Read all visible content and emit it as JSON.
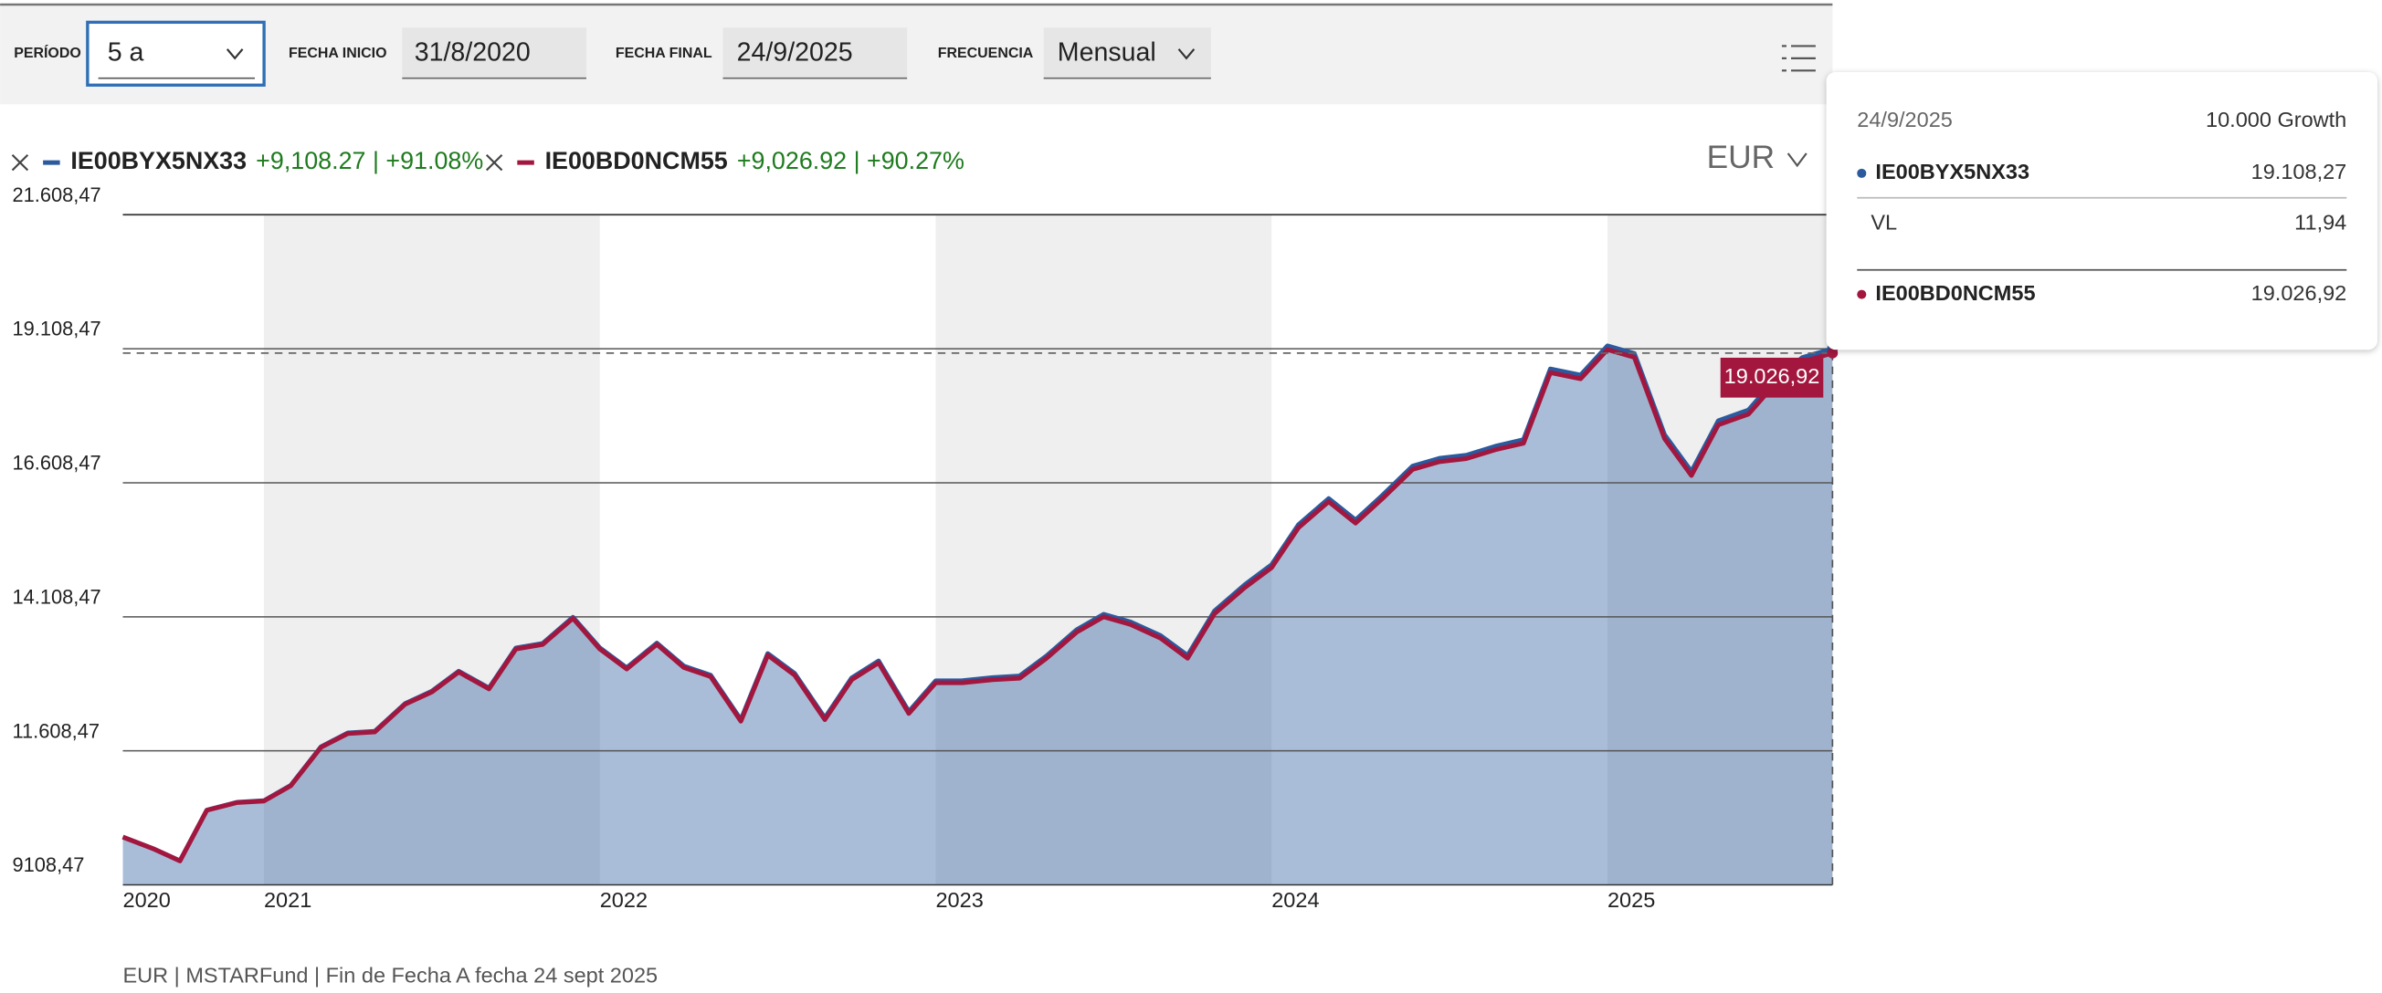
{
  "toolbar": {
    "period_label": "PERÍODO",
    "period": "5 a",
    "start_label": "FECHA INICIO",
    "start": "31/8/2020",
    "end_label": "FECHA FINAL",
    "end": "24/9/2025",
    "freq_label": "FRECUENCIA",
    "freq": "Mensual"
  },
  "chart_data": {
    "type": "line",
    "currency": "EUR",
    "footer": "EUR | MSTARFund | Fin de Fecha A fecha 24 sept 2025",
    "x": [
      2020.58,
      2020.67,
      2020.75,
      2020.83,
      2020.92,
      2021.0,
      2021.08,
      2021.17,
      2021.25,
      2021.33,
      2021.42,
      2021.5,
      2021.58,
      2021.67,
      2021.75,
      2021.83,
      2021.92,
      2022.0,
      2022.08,
      2022.17,
      2022.25,
      2022.33,
      2022.42,
      2022.5,
      2022.58,
      2022.67,
      2022.75,
      2022.83,
      2022.92,
      2023.0,
      2023.08,
      2023.17,
      2023.25,
      2023.33,
      2023.42,
      2023.5,
      2023.58,
      2023.67,
      2023.75,
      2023.83,
      2023.92,
      2024.0,
      2024.08,
      2024.17,
      2024.25,
      2024.33,
      2024.42,
      2024.5,
      2024.58,
      2024.67,
      2024.75,
      2024.83,
      2024.92,
      2025.0,
      2025.08,
      2025.17,
      2025.25,
      2025.33,
      2025.42,
      2025.5,
      2025.58,
      2025.67
    ],
    "xlim": [
      2020.58,
      2025.67
    ],
    "xticks": [
      {
        "value": 2020.58,
        "label": "2020"
      },
      2021,
      2022,
      2023,
      2024,
      2025
    ],
    "ylim": [
      9108.47,
      21608.47
    ],
    "yticks": [
      {
        "value": 9108.47,
        "label": "9108,47"
      },
      {
        "value": 11608.47,
        "label": "11.608,47"
      },
      {
        "value": 14108.47,
        "label": "14.108,47"
      },
      {
        "value": 16608.47,
        "label": "16.608,47"
      },
      {
        "value": 19108.47,
        "label": "19.108,47"
      },
      {
        "value": 21608.47,
        "label": "21.608,47"
      }
    ],
    "grid": true,
    "series": [
      {
        "name": "IE00BYX5NX33",
        "color": "#2b5a9e",
        "change": "+9,108.27 | +91.08%",
        "values": [
          10000,
          9785,
          9558,
          10504,
          10649,
          10679,
          10966,
          11684,
          11943,
          11973,
          12489,
          12721,
          13094,
          12780,
          13526,
          13613,
          14101,
          13530,
          13159,
          13618,
          13191,
          13020,
          12190,
          13424,
          13053,
          12223,
          12970,
          13286,
          12342,
          12916,
          12917,
          12976,
          13006,
          13380,
          13868,
          14156,
          14014,
          13757,
          13387,
          14218,
          14706,
          15080,
          15826,
          16314,
          15915,
          16374,
          16919,
          17065,
          17123,
          17296,
          17412,
          18731,
          18617,
          19162,
          19021,
          17504,
          16818,
          17765,
          17966,
          18540,
          18943,
          19108.27
        ]
      },
      {
        "name": "IE00BD0NCM55",
        "color": "#a3173f",
        "change": "+9,026.92 | +90.27%",
        "values": [
          10000,
          9784,
          9555,
          10500,
          10644,
          10672,
          10958,
          11675,
          11932,
          11961,
          12476,
          12706,
          13078,
          12763,
          13507,
          13593,
          14080,
          13507,
          13135,
          13593,
          13164,
          12992,
          12161,
          13393,
          13021,
          12190,
          12935,
          13250,
          12305,
          12877,
          12877,
          12935,
          12963,
          13336,
          13823,
          14109,
          13966,
          13708,
          13336,
          14166,
          14653,
          15025,
          15770,
          16257,
          15856,
          16314,
          16858,
          17002,
          17059,
          17231,
          17345,
          18663,
          18548,
          19092,
          18949,
          17431,
          16744,
          17689,
          17889,
          18462,
          18863,
          19026.92
        ]
      }
    ],
    "marker_label": "19.026,92",
    "tooltip": {
      "date": "24/9/2025",
      "header": "10.000 Growth",
      "rows": [
        {
          "name": "IE00BYX5NX33",
          "value": "19.108,27"
        },
        {
          "name": "VL",
          "value": "11,94"
        },
        {
          "name": "IE00BD0NCM55",
          "value": "19.026,92"
        }
      ]
    }
  }
}
